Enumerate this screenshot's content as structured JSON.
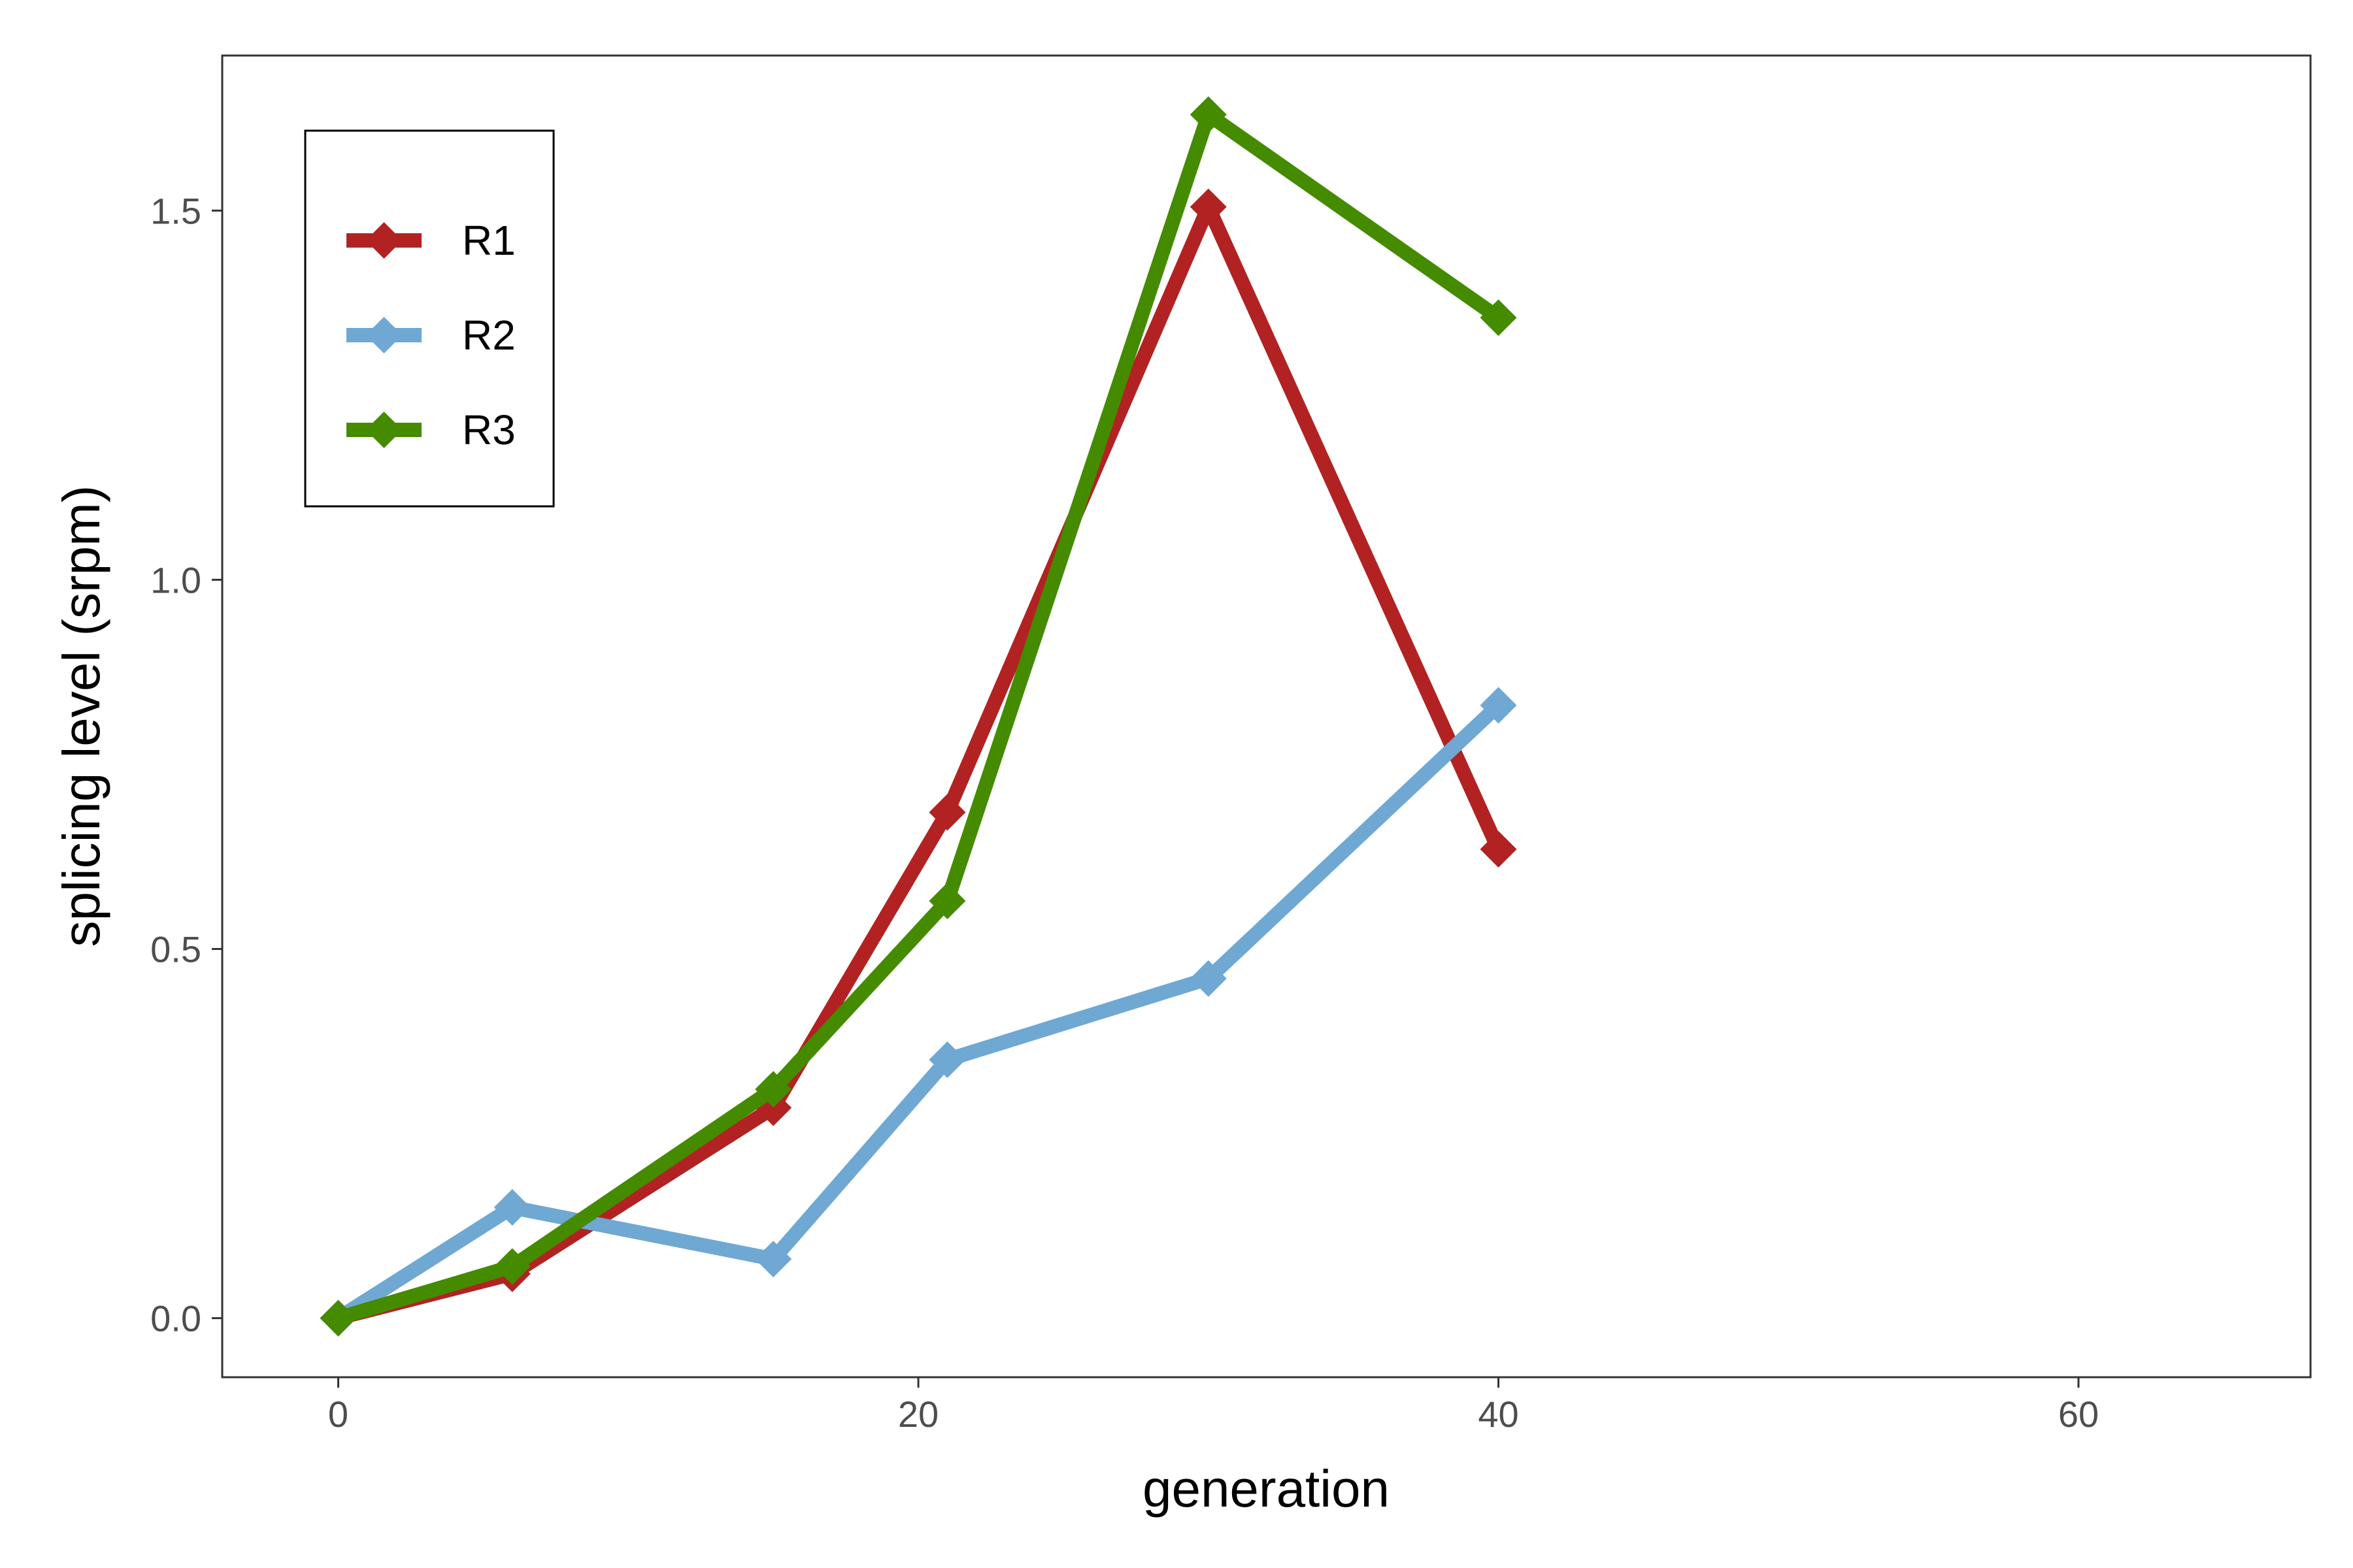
{
  "chart_data": {
    "type": "line",
    "xlabel": "generation",
    "ylabel": "splicing level (srpm)",
    "xlim": [
      -4,
      68
    ],
    "ylim": [
      -0.08,
      1.71
    ],
    "x_ticks": [
      0,
      20,
      40,
      60
    ],
    "x_tick_labels": [
      "0",
      "20",
      "40",
      "60"
    ],
    "y_ticks": [
      0,
      0.5,
      1,
      1.5
    ],
    "y_tick_labels": [
      "0.0",
      "0.5",
      "1.0",
      "1.5"
    ],
    "grid": false,
    "legend_position": "top-left",
    "series": [
      {
        "name": "R1",
        "color": "#b22222",
        "marker": "diamond",
        "x": [
          0,
          6,
          15,
          21,
          30,
          40
        ],
        "y": [
          0,
          0.06,
          0.285,
          0.685,
          1.505,
          0.635
        ]
      },
      {
        "name": "R2",
        "color": "#6ea8d3",
        "marker": "diamond",
        "x": [
          0,
          6,
          15,
          21,
          30,
          40
        ],
        "y": [
          0,
          0.15,
          0.08,
          0.35,
          0.46,
          0.83
        ]
      },
      {
        "name": "R3",
        "color": "#458b00",
        "marker": "diamond",
        "x": [
          0,
          6,
          15,
          21,
          30,
          40
        ],
        "y": [
          0,
          0.07,
          0.31,
          0.565,
          1.63,
          1.355
        ]
      }
    ]
  }
}
